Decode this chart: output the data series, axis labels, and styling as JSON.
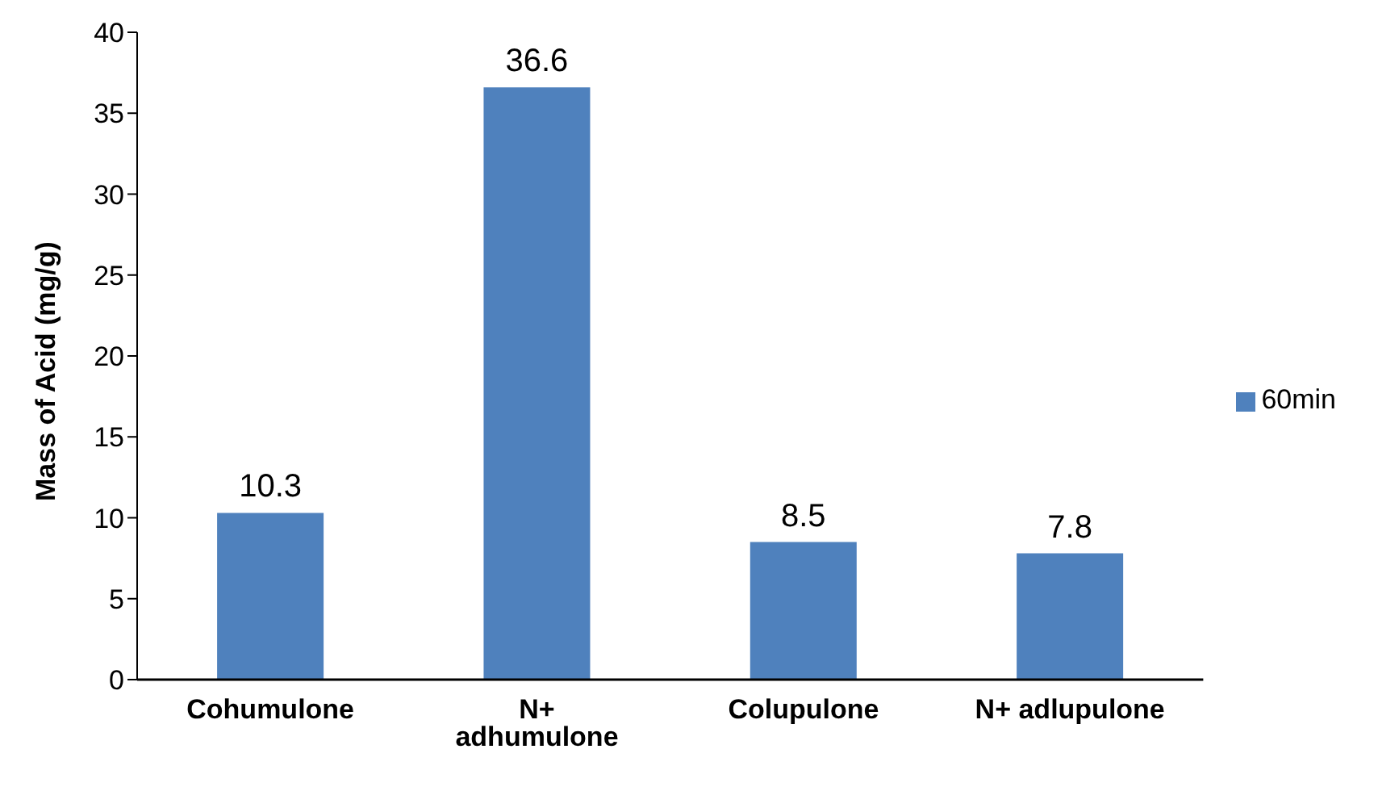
{
  "chart_data": {
    "type": "bar",
    "ylabel": "Mass of Acid (mg/g)",
    "categories": [
      "Cohumulone",
      "N+ adhumulone",
      "Colupulone",
      "N+ adlupulone"
    ],
    "series": [
      {
        "name": "60min",
        "color": "#4f81bd",
        "values": [
          10.3,
          36.6,
          8.5,
          7.8
        ]
      }
    ],
    "ylim": [
      0,
      40
    ],
    "yticks": [
      0,
      5,
      10,
      15,
      20,
      25,
      30,
      35,
      40
    ],
    "grid": false,
    "legend": "right",
    "data_labels": true
  }
}
